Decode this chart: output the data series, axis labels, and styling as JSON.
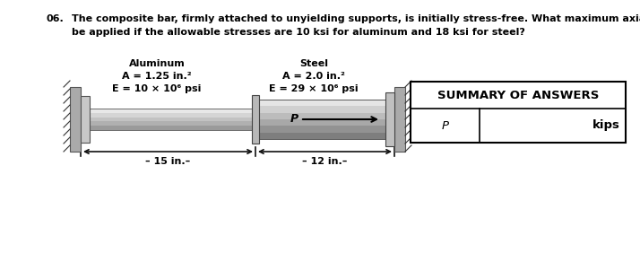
{
  "title_number": "06.",
  "title_text": "The composite bar, firmly attached to unyielding supports, is initially stress-free. What maximum axial load P can\nbe applied if the allowable stresses are 10 ksi for aluminum and 18 ksi for steel?",
  "aluminum_label": "Aluminum",
  "aluminum_A": "A = 1.25 in.²",
  "aluminum_E": "E = 10 × 10⁶ psi",
  "steel_label": "Steel",
  "steel_A": "A = 2.0 in.²",
  "steel_E": "E = 29 × 10⁶ psi",
  "P_label": "P",
  "dim_left": "– 15 in.–",
  "dim_right": "– 12 in.–",
  "summary_title": "SUMMARY OF ANSWERS",
  "summary_col1": "P",
  "summary_col2": "kips",
  "bg_color": "#ffffff",
  "text_color": "#000000",
  "title_fontsize": 8.0,
  "label_fontsize": 8.0,
  "summary_fontsize": 9.0
}
